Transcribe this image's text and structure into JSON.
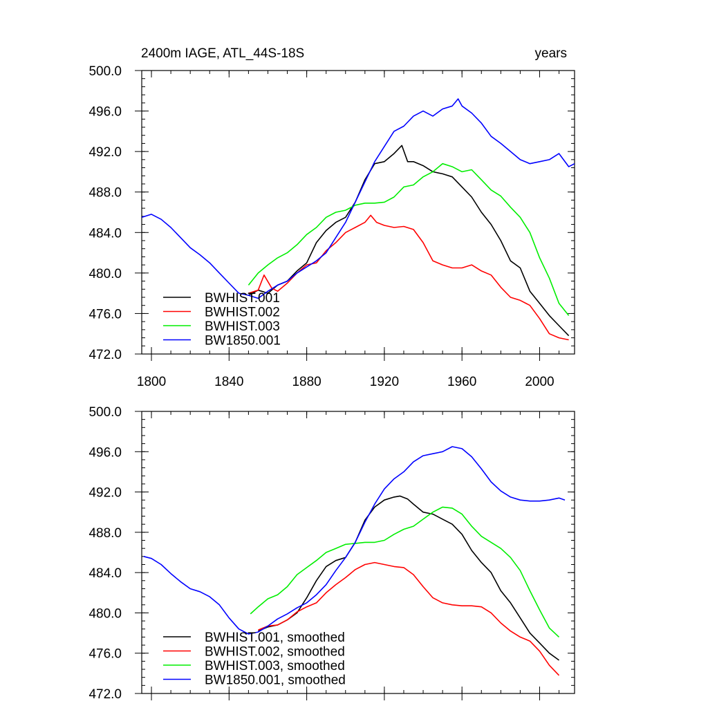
{
  "chart_data": [
    {
      "type": "line",
      "title": "2400m IAGE, ATL_44S-18S",
      "units_label": "years",
      "xlim": [
        1795,
        2018
      ],
      "ylim": [
        472.0,
        500.0
      ],
      "x_ticks": [
        1800,
        1840,
        1880,
        1920,
        1960,
        2000
      ],
      "x_tick_labels": [
        "1800",
        "1840",
        "1880",
        "1920",
        "1960",
        "2000"
      ],
      "y_ticks": [
        472.0,
        476.0,
        480.0,
        484.0,
        488.0,
        492.0,
        496.0,
        500.0
      ],
      "y_tick_labels": [
        "472.0",
        "476.0",
        "480.0",
        "484.0",
        "488.0",
        "492.0",
        "496.0",
        "500.0"
      ],
      "legend_position": "bottom-left",
      "series": [
        {
          "name": "BWHIST.001",
          "color": "#000000",
          "x": [
            1850,
            1855,
            1860,
            1865,
            1870,
            1875,
            1880,
            1885,
            1890,
            1895,
            1900,
            1905,
            1910,
            1915,
            1920,
            1925,
            1929,
            1932,
            1935,
            1940,
            1945,
            1950,
            1955,
            1960,
            1965,
            1970,
            1975,
            1980,
            1985,
            1990,
            1995,
            2000,
            2005,
            2010,
            2015
          ],
          "y": [
            477.8,
            478.3,
            478.0,
            478.8,
            479.2,
            480.2,
            481.0,
            483.0,
            484.2,
            485.0,
            485.5,
            487.0,
            489.2,
            490.8,
            491.0,
            491.8,
            492.6,
            491.0,
            491.0,
            490.6,
            490.0,
            489.8,
            489.5,
            488.5,
            487.5,
            486.0,
            484.8,
            483.2,
            481.2,
            480.5,
            478.2,
            477.0,
            475.8,
            474.8,
            473.8
          ]
        },
        {
          "name": "BWHIST.002",
          "color": "#ff0000",
          "x": [
            1850,
            1855,
            1858,
            1862,
            1865,
            1870,
            1875,
            1880,
            1885,
            1890,
            1895,
            1900,
            1905,
            1910,
            1913,
            1916,
            1920,
            1925,
            1930,
            1935,
            1940,
            1945,
            1950,
            1955,
            1960,
            1965,
            1970,
            1975,
            1980,
            1985,
            1990,
            1995,
            2000,
            2005,
            2010,
            2015
          ],
          "y": [
            478.0,
            478.3,
            479.8,
            478.5,
            478.2,
            479.0,
            480.0,
            480.8,
            481.0,
            482.2,
            483.0,
            484.0,
            484.5,
            485.0,
            485.7,
            485.0,
            484.7,
            484.5,
            484.6,
            484.3,
            483.0,
            481.2,
            480.8,
            480.5,
            480.5,
            480.8,
            480.2,
            479.8,
            478.6,
            477.6,
            477.3,
            476.8,
            475.5,
            474.0,
            473.6,
            473.4
          ]
        },
        {
          "name": "BWHIST.003",
          "color": "#00ee00",
          "x": [
            1850,
            1855,
            1860,
            1865,
            1870,
            1875,
            1880,
            1885,
            1890,
            1895,
            1900,
            1905,
            1910,
            1915,
            1920,
            1925,
            1930,
            1935,
            1940,
            1945,
            1950,
            1955,
            1960,
            1965,
            1970,
            1975,
            1980,
            1985,
            1990,
            1995,
            2000,
            2005,
            2010,
            2015
          ],
          "y": [
            478.8,
            480.0,
            480.8,
            481.5,
            482.0,
            482.8,
            483.8,
            484.5,
            485.5,
            486.0,
            486.2,
            486.7,
            486.9,
            486.9,
            487.0,
            487.5,
            488.5,
            488.7,
            489.5,
            490.0,
            490.8,
            490.5,
            490.0,
            490.2,
            489.2,
            488.2,
            487.6,
            486.5,
            485.5,
            484.0,
            481.5,
            479.5,
            477.0,
            475.8
          ]
        },
        {
          "name": "BW1850.001",
          "color": "#0000ff",
          "x": [
            1795,
            1800,
            1805,
            1810,
            1815,
            1820,
            1825,
            1830,
            1835,
            1840,
            1845,
            1850,
            1855,
            1860,
            1865,
            1870,
            1875,
            1880,
            1885,
            1890,
            1895,
            1900,
            1905,
            1910,
            1915,
            1920,
            1925,
            1930,
            1935,
            1940,
            1945,
            1950,
            1955,
            1958,
            1960,
            1965,
            1970,
            1975,
            1980,
            1985,
            1990,
            1995,
            2000,
            2005,
            2010,
            2015,
            2018
          ],
          "y": [
            485.5,
            485.8,
            485.3,
            484.5,
            483.5,
            482.5,
            481.8,
            481.0,
            480.0,
            479.0,
            478.0,
            477.8,
            477.5,
            478.2,
            478.8,
            479.2,
            480.0,
            480.6,
            481.2,
            482.0,
            483.5,
            485.0,
            487.0,
            489.0,
            491.0,
            492.5,
            494.0,
            494.5,
            495.5,
            496.0,
            495.5,
            496.2,
            496.5,
            497.2,
            496.5,
            495.8,
            494.8,
            493.5,
            492.8,
            492.0,
            491.2,
            490.8,
            491.0,
            491.2,
            491.8,
            490.5,
            490.8
          ]
        }
      ]
    },
    {
      "type": "line",
      "title": "",
      "units_label": "",
      "xlim": [
        1795,
        2018
      ],
      "ylim": [
        472.0,
        500.0
      ],
      "x_ticks": [
        1800,
        1840,
        1880,
        1920,
        1960,
        2000
      ],
      "x_tick_labels": [],
      "y_ticks": [
        472.0,
        476.0,
        480.0,
        484.0,
        488.0,
        492.0,
        496.0,
        500.0
      ],
      "y_tick_labels": [
        "472.0",
        "476.0",
        "480.0",
        "484.0",
        "488.0",
        "492.0",
        "496.0",
        "500.0"
      ],
      "legend_position": "bottom-left",
      "series": [
        {
          "name": "BWHIST.001, smoothed",
          "color": "#000000",
          "x": [
            1855,
            1860,
            1865,
            1870,
            1875,
            1880,
            1885,
            1890,
            1895,
            1900,
            1905,
            1910,
            1915,
            1920,
            1925,
            1928,
            1932,
            1935,
            1940,
            1945,
            1950,
            1955,
            1960,
            1965,
            1970,
            1975,
            1980,
            1985,
            1990,
            1995,
            2000,
            2005,
            2010
          ],
          "y": [
            478.2,
            478.6,
            478.8,
            479.3,
            480.0,
            481.5,
            483.2,
            484.6,
            485.2,
            485.5,
            487.0,
            489.2,
            490.5,
            491.2,
            491.5,
            491.6,
            491.3,
            490.8,
            490.0,
            489.8,
            489.3,
            488.8,
            487.8,
            486.2,
            485.0,
            484.0,
            482.2,
            481.0,
            479.5,
            478.0,
            477.0,
            476.0,
            475.3
          ]
        },
        {
          "name": "BWHIST.002, smoothed",
          "color": "#ff0000",
          "x": [
            1855,
            1860,
            1865,
            1870,
            1875,
            1880,
            1885,
            1890,
            1895,
            1900,
            1905,
            1910,
            1915,
            1920,
            1925,
            1930,
            1935,
            1940,
            1945,
            1950,
            1955,
            1960,
            1965,
            1970,
            1975,
            1980,
            1985,
            1990,
            1995,
            2000,
            2005,
            2010
          ],
          "y": [
            478.3,
            478.7,
            478.8,
            479.3,
            480.1,
            480.6,
            481.0,
            482.0,
            482.8,
            483.5,
            484.3,
            484.8,
            485.0,
            484.8,
            484.6,
            484.5,
            483.8,
            482.6,
            481.5,
            481.0,
            480.8,
            480.7,
            480.7,
            480.6,
            480.0,
            479.0,
            478.2,
            477.6,
            477.2,
            476.2,
            474.8,
            473.8
          ]
        },
        {
          "name": "BWHIST.003, smoothed",
          "color": "#00ee00",
          "x": [
            1851,
            1855,
            1860,
            1865,
            1870,
            1875,
            1880,
            1885,
            1890,
            1895,
            1900,
            1905,
            1910,
            1915,
            1920,
            1925,
            1930,
            1935,
            1940,
            1945,
            1950,
            1955,
            1960,
            1965,
            1970,
            1975,
            1980,
            1985,
            1990,
            1995,
            2000,
            2005,
            2010
          ],
          "y": [
            479.9,
            480.6,
            481.4,
            481.8,
            482.6,
            483.8,
            484.5,
            485.2,
            486.0,
            486.4,
            486.8,
            486.9,
            487.0,
            487.0,
            487.2,
            487.8,
            488.3,
            488.6,
            489.3,
            490.0,
            490.5,
            490.4,
            489.8,
            488.6,
            487.6,
            487.0,
            486.4,
            485.5,
            484.2,
            482.2,
            480.3,
            478.5,
            477.6
          ]
        },
        {
          "name": "BW1850.001, smoothed",
          "color": "#0000ff",
          "x": [
            1796,
            1800,
            1805,
            1810,
            1815,
            1820,
            1825,
            1830,
            1835,
            1840,
            1845,
            1850,
            1855,
            1860,
            1865,
            1870,
            1875,
            1880,
            1885,
            1890,
            1895,
            1900,
            1905,
            1910,
            1915,
            1920,
            1925,
            1930,
            1935,
            1940,
            1945,
            1950,
            1955,
            1960,
            1965,
            1970,
            1975,
            1980,
            1985,
            1990,
            1995,
            2000,
            2005,
            2010,
            2013
          ],
          "y": [
            485.6,
            485.4,
            484.8,
            483.9,
            483.1,
            482.4,
            482.1,
            481.6,
            480.8,
            479.5,
            478.4,
            477.9,
            478.1,
            478.7,
            479.4,
            479.9,
            480.5,
            481.0,
            481.8,
            482.8,
            484.2,
            485.5,
            487.0,
            489.0,
            490.8,
            492.3,
            493.3,
            494.0,
            495.0,
            495.6,
            495.8,
            496.0,
            496.5,
            496.3,
            495.5,
            494.3,
            493.0,
            492.1,
            491.5,
            491.2,
            491.1,
            491.1,
            491.2,
            491.4,
            491.2
          ]
        }
      ]
    }
  ]
}
